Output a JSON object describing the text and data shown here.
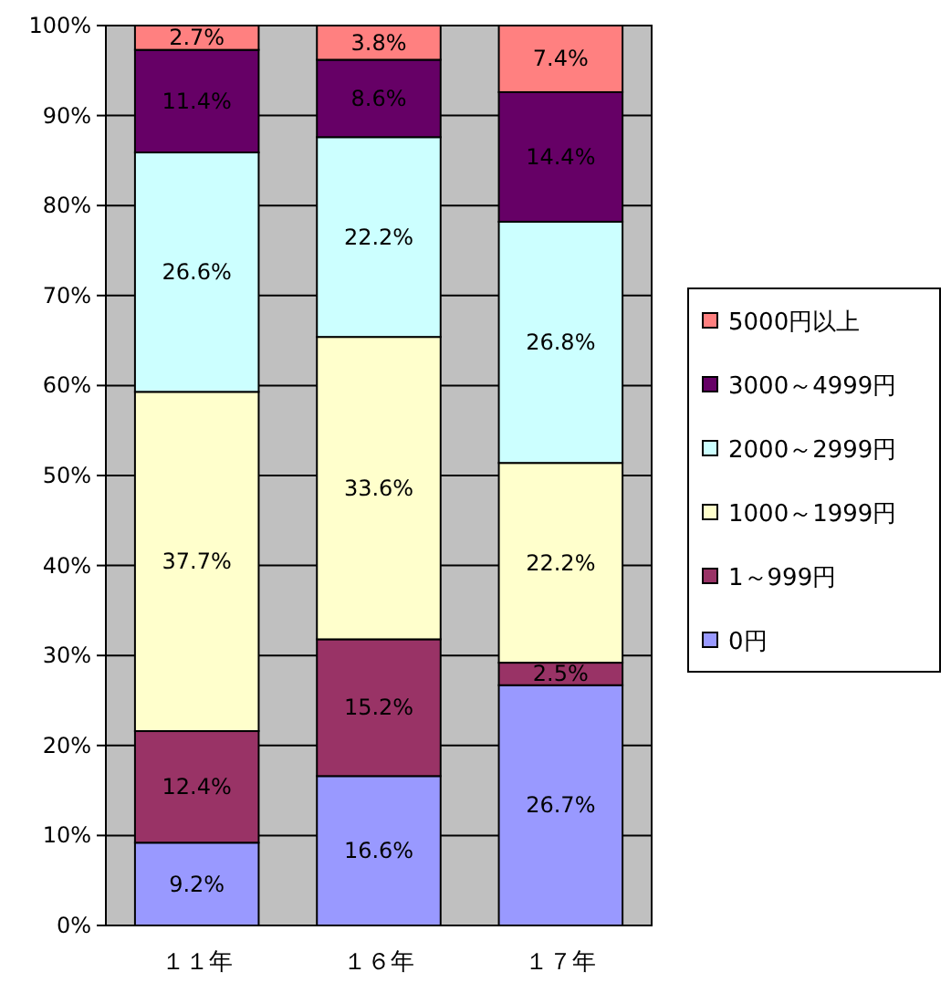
{
  "chart_data": {
    "type": "bar",
    "stacked": true,
    "categories": [
      "１１年",
      "１６年",
      "１７年"
    ],
    "ylim": [
      0,
      100
    ],
    "yticks": [
      {
        "value": 0,
        "label": "0%"
      },
      {
        "value": 10,
        "label": "10%"
      },
      {
        "value": 20,
        "label": "20%"
      },
      {
        "value": 30,
        "label": "30%"
      },
      {
        "value": 40,
        "label": "40%"
      },
      {
        "value": 50,
        "label": "50%"
      },
      {
        "value": 60,
        "label": "60%"
      },
      {
        "value": 70,
        "label": "70%"
      },
      {
        "value": 80,
        "label": "80%"
      },
      {
        "value": 90,
        "label": "90%"
      },
      {
        "value": 100,
        "label": "100%"
      }
    ],
    "grid": "y",
    "legend": "right",
    "series": [
      {
        "name": "0円",
        "color": "#9999ff",
        "values": [
          9.2,
          16.6,
          26.7
        ],
        "value_labels": [
          "9.2%",
          "16.6%",
          "26.7%"
        ]
      },
      {
        "name": "1～999円",
        "color": "#993366",
        "values": [
          12.4,
          15.2,
          2.5
        ],
        "value_labels": [
          "12.4%",
          "15.2%",
          "2.5%"
        ]
      },
      {
        "name": "1000～1999円",
        "color": "#ffffcc",
        "values": [
          37.7,
          33.6,
          22.2
        ],
        "value_labels": [
          "37.7%",
          "33.6%",
          "22.2%"
        ]
      },
      {
        "name": "2000～2999円",
        "color": "#ccffff",
        "values": [
          26.6,
          22.2,
          26.8
        ],
        "value_labels": [
          "26.6%",
          "22.2%",
          "26.8%"
        ]
      },
      {
        "name": "3000～4999円",
        "color": "#660066",
        "values": [
          11.4,
          8.6,
          14.4
        ],
        "value_labels": [
          "11.4%",
          "8.6%",
          "14.4%"
        ]
      },
      {
        "name": "5000円以上",
        "color": "#ff8080",
        "values": [
          2.7,
          3.8,
          7.4
        ],
        "value_labels": [
          "2.7%",
          "3.8%",
          "7.4%"
        ]
      }
    ]
  }
}
